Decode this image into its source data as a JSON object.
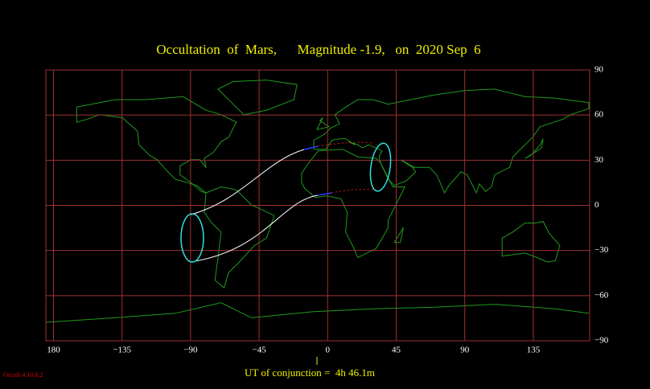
{
  "title": "Occultation  of  Mars,      Magnitude -1.9,   on  2020 Sep  6",
  "map": {
    "xlim": [
      -185,
      172
    ],
    "ylim": [
      -90,
      90
    ],
    "xticks": [
      {
        "value": -180,
        "label": "180"
      },
      {
        "value": -135,
        "label": "−135"
      },
      {
        "value": -90,
        "label": "−90"
      },
      {
        "value": -45,
        "label": "−45"
      },
      0,
      45,
      90,
      135
    ],
    "yticks": [
      90,
      60,
      30,
      0,
      {
        "value": -30,
        "label": "−30"
      },
      {
        "value": -60,
        "label": "−60"
      },
      {
        "value": -90,
        "label": "−90"
      }
    ]
  },
  "conjunction_label": "UT of conjunction =  4h 46.1m",
  "version": "Occult 4.10.6.2"
}
